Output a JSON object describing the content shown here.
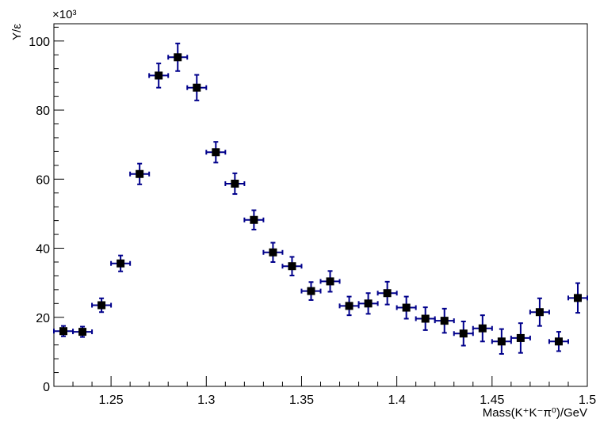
{
  "chart_data": {
    "type": "scatter",
    "xlabel": "Mass(K⁺K⁻π⁰)/GeV",
    "ylabel": "Y/ε",
    "y_multiplier": "×10³",
    "xlim": [
      1.22,
      1.5
    ],
    "ylim": [
      0,
      105
    ],
    "x_ticks": [
      1.25,
      1.3,
      1.35,
      1.4,
      1.45,
      1.5
    ],
    "x_tick_labels": [
      "1.25",
      "1.3",
      "1.35",
      "1.4",
      "1.45",
      "1.5"
    ],
    "y_ticks": [
      0,
      20,
      40,
      60,
      80,
      100
    ],
    "y_tick_labels": [
      "0",
      "20",
      "40",
      "60",
      "80",
      "100"
    ],
    "grid": false,
    "marker_color": "#000000",
    "error_bar_color": "#00008b",
    "x_half_width": 0.005,
    "points": [
      {
        "x": 1.225,
        "y": 16.0,
        "err": 1.5
      },
      {
        "x": 1.235,
        "y": 15.8,
        "err": 1.5
      },
      {
        "x": 1.245,
        "y": 23.5,
        "err": 2.0
      },
      {
        "x": 1.255,
        "y": 35.6,
        "err": 2.3
      },
      {
        "x": 1.265,
        "y": 61.5,
        "err": 3.0
      },
      {
        "x": 1.275,
        "y": 90.0,
        "err": 3.5
      },
      {
        "x": 1.285,
        "y": 95.3,
        "err": 4.0
      },
      {
        "x": 1.295,
        "y": 86.5,
        "err": 3.7
      },
      {
        "x": 1.305,
        "y": 67.8,
        "err": 3.0
      },
      {
        "x": 1.315,
        "y": 58.7,
        "err": 3.0
      },
      {
        "x": 1.325,
        "y": 48.2,
        "err": 2.8
      },
      {
        "x": 1.335,
        "y": 38.8,
        "err": 2.8
      },
      {
        "x": 1.345,
        "y": 34.8,
        "err": 2.7
      },
      {
        "x": 1.355,
        "y": 27.6,
        "err": 2.6
      },
      {
        "x": 1.365,
        "y": 30.4,
        "err": 3.0
      },
      {
        "x": 1.375,
        "y": 23.3,
        "err": 2.7
      },
      {
        "x": 1.385,
        "y": 24.0,
        "err": 3.0
      },
      {
        "x": 1.395,
        "y": 27.0,
        "err": 3.3
      },
      {
        "x": 1.405,
        "y": 22.8,
        "err": 3.2
      },
      {
        "x": 1.415,
        "y": 19.6,
        "err": 3.3
      },
      {
        "x": 1.425,
        "y": 19.0,
        "err": 3.5
      },
      {
        "x": 1.435,
        "y": 15.3,
        "err": 3.5
      },
      {
        "x": 1.445,
        "y": 16.8,
        "err": 3.8
      },
      {
        "x": 1.455,
        "y": 13.0,
        "err": 3.6
      },
      {
        "x": 1.465,
        "y": 14.0,
        "err": 4.3
      },
      {
        "x": 1.475,
        "y": 21.5,
        "err": 4.0
      },
      {
        "x": 1.485,
        "y": 13.0,
        "err": 2.8
      },
      {
        "x": 1.495,
        "y": 25.6,
        "err": 4.3
      }
    ]
  }
}
